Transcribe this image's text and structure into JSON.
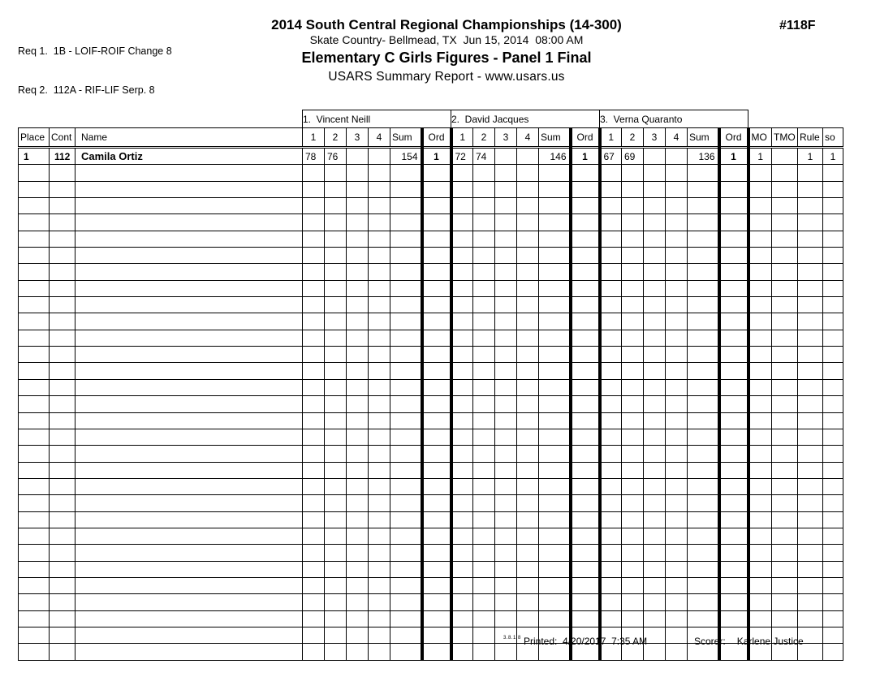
{
  "req_lines": {
    "line1": "Req 1.  1B - LOIF-ROIF Change 8",
    "line2": "Req 2.  112A - RIF-LIF Serp. 8"
  },
  "event_number": "#118F",
  "titles": {
    "championship": "2014 South Central Regional Championships (14-300)",
    "venue_date": "Skate Country- Bellmead, TX  Jun 15, 2014  08:00 AM",
    "event": "Elementary C Girls Figures - Panel 1 Final",
    "report": "USARS Summary Report - www.usars.us"
  },
  "table": {
    "judges": [
      "1.  Vincent Neill",
      "2.  David Jacques",
      "3.  Verna Quaranto"
    ],
    "col_headers": {
      "place": "Place",
      "cont": "Cont",
      "name": "Name",
      "mo": "MO",
      "tmo": "TMO",
      "rule": "Rule",
      "so": "so"
    },
    "sub_headers": [
      "1",
      "2",
      "3",
      "4",
      "Sum",
      "Ord"
    ],
    "rows": [
      {
        "place": "1",
        "cont": "112",
        "name": "Camila Ortiz",
        "judges": [
          {
            "s1": "78",
            "s2": "76",
            "s3": "",
            "s4": "",
            "sum": "154",
            "ord": "1"
          },
          {
            "s1": "72",
            "s2": "74",
            "s3": "",
            "s4": "",
            "sum": "146",
            "ord": "1"
          },
          {
            "s1": "67",
            "s2": "69",
            "s3": "",
            "s4": "",
            "sum": "136",
            "ord": "1"
          }
        ],
        "mo": "1",
        "tmo": "",
        "rule": "1",
        "so": "1"
      }
    ],
    "empty_rows": 30
  },
  "footer": {
    "version": "3.8.1.8",
    "printed": "Printed:  4/20/2017  7:35 AM",
    "scorer_label": "Scorer:",
    "scorer_name": "Karlene Justice"
  }
}
